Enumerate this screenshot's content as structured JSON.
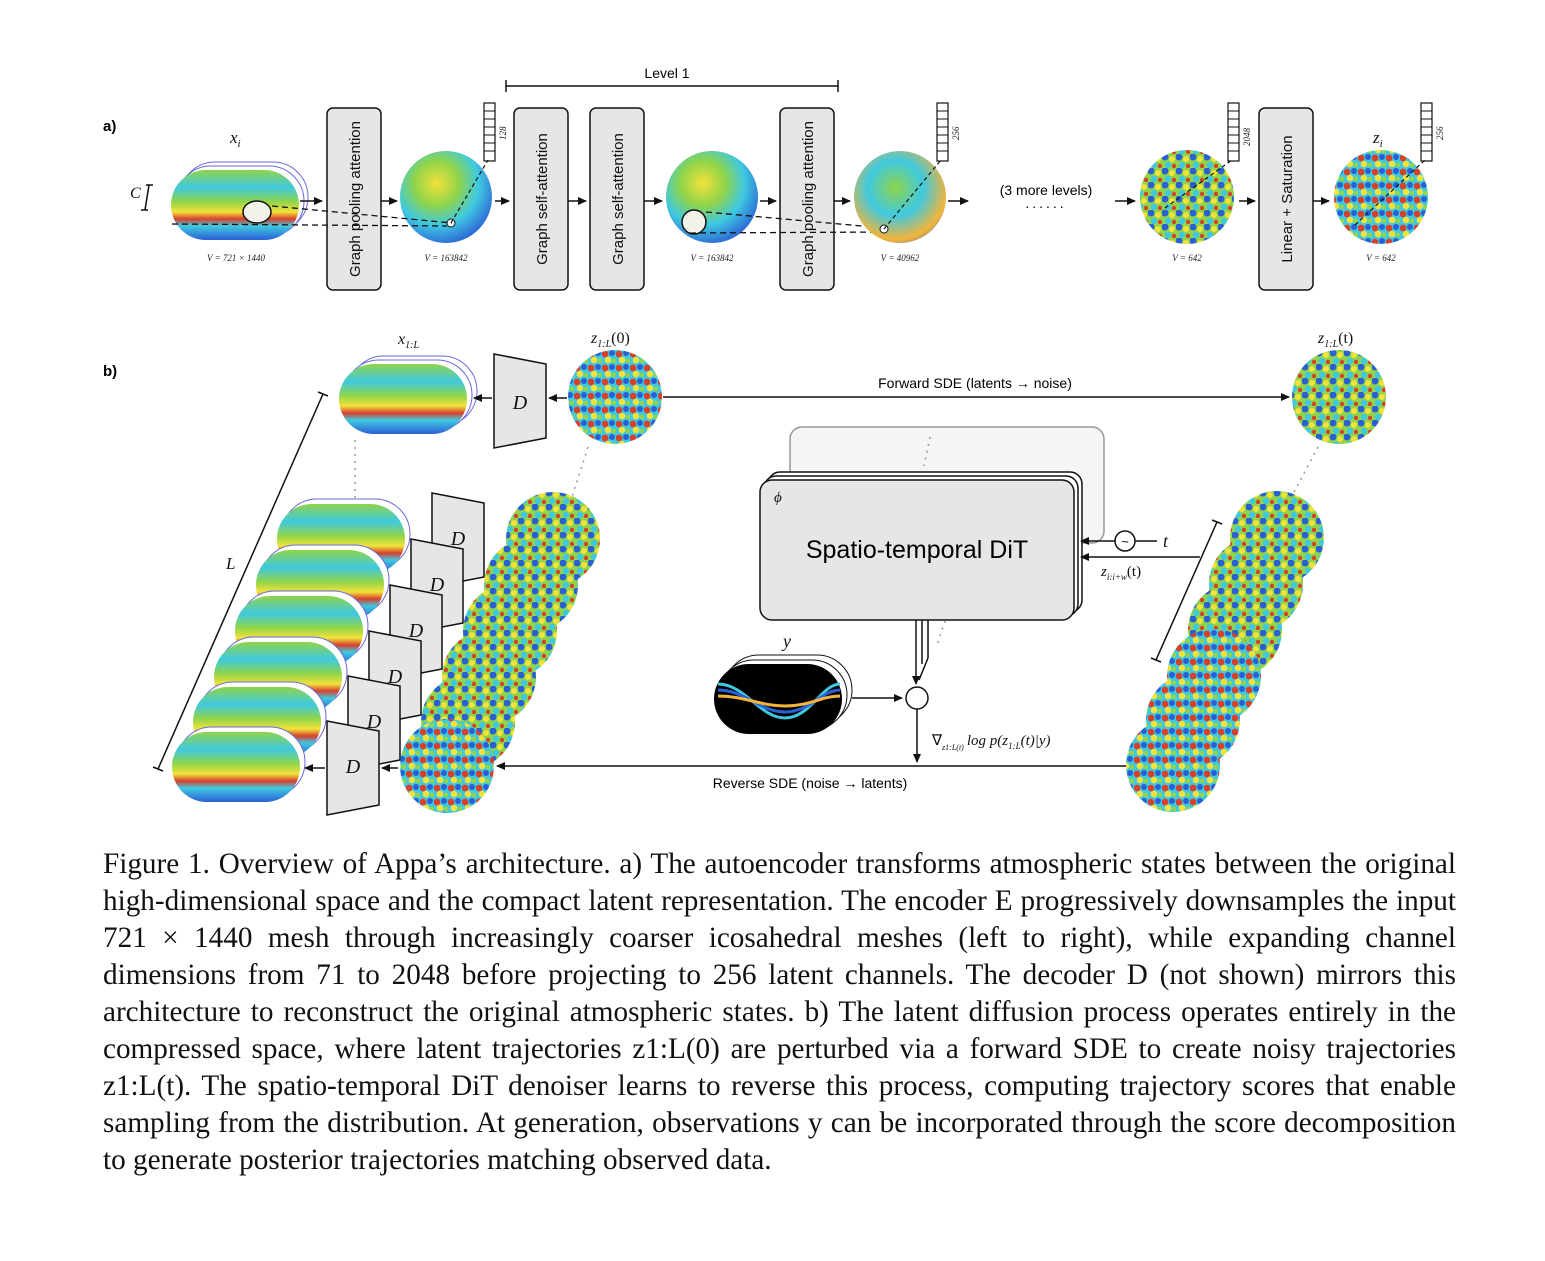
{
  "panel_a": {
    "label": "a)",
    "level_label": "Level 1",
    "input_symbol": "x",
    "input_subscript": "i",
    "channel_symbol": "C",
    "v_input": "V = 721 × 1440",
    "v_1": "V = 163842",
    "v_2": "V = 163842",
    "v_3": "V = 40962",
    "v_4": "V = 642",
    "v_5": "V = 642",
    "block_pool_1": "Graph pooling attention",
    "block_attn_1": "Graph self-attention",
    "block_attn_2": "Graph self-attention",
    "block_pool_2": "Graph pooling attention",
    "block_linear": "Linear + Saturation",
    "more_levels": "(3 more levels)",
    "dim_1": "128",
    "dim_2": "256",
    "dim_3": "2048",
    "dim_4": "256",
    "output_symbol": "z",
    "output_subscript": "i"
  },
  "panel_b": {
    "label": "b)",
    "x_label": "x",
    "x_sub": "1:L",
    "z0_label": "z",
    "z0_sub": "1:L",
    "z0_arg": "(0)",
    "zt_label": "z",
    "zt_sub": "1:L",
    "zt_arg": "(t)",
    "decoder": "D",
    "length_symbol": "L",
    "forward_sde": "Forward SDE (latents → noise)",
    "reverse_sde": "Reverse SDE (noise → latents)",
    "phi": "ϕ",
    "dit_label": "Spatio-temporal DiT",
    "t_symbol": "t",
    "tilde": "~",
    "window_label": "z",
    "window_sub": "i:i+w",
    "window_arg": "(t)",
    "y_symbol": "y",
    "score_label": "∇ log p(z  (t)|y)",
    "score_grad": "∇",
    "score_grad_sub": "z1:L(t)",
    "score_expr": "log p(z",
    "score_expr_sub": "1:L",
    "score_expr_tail": "(t)|y)"
  },
  "caption": {
    "text": "Figure 1.  Overview of Appa’s architecture.  a) The autoencoder transforms atmospheric states between the original high-dimensional space and the compact latent representation. The encoder E progressively downsamples the input 721 × 1440 mesh through increasingly coarser icosahedral meshes (left to right), while expanding channel dimensions from 71 to 2048 before projecting to 256 latent channels. The decoder D (not shown) mirrors this architecture to reconstruct the original atmospheric states. b) The latent diffusion process operates entirely in the compressed space, where latent trajectories z1:L(0) are perturbed via a forward SDE to create noisy trajectories z1:L(t). The spatio-temporal DiT denoiser learns to reverse this process, computing trajectory scores that enable sampling from the distribution. At generation, observations y can be incorporated through the score decomposition to generate posterior trajectories matching observed data."
  },
  "colors": {
    "box_fill": "#e6e6e6",
    "field_blue": "#2b5fd6",
    "field_cyan": "#3fc9e0",
    "field_green": "#8fd44a",
    "field_yellow": "#f2e23a",
    "field_red": "#d8402c"
  }
}
